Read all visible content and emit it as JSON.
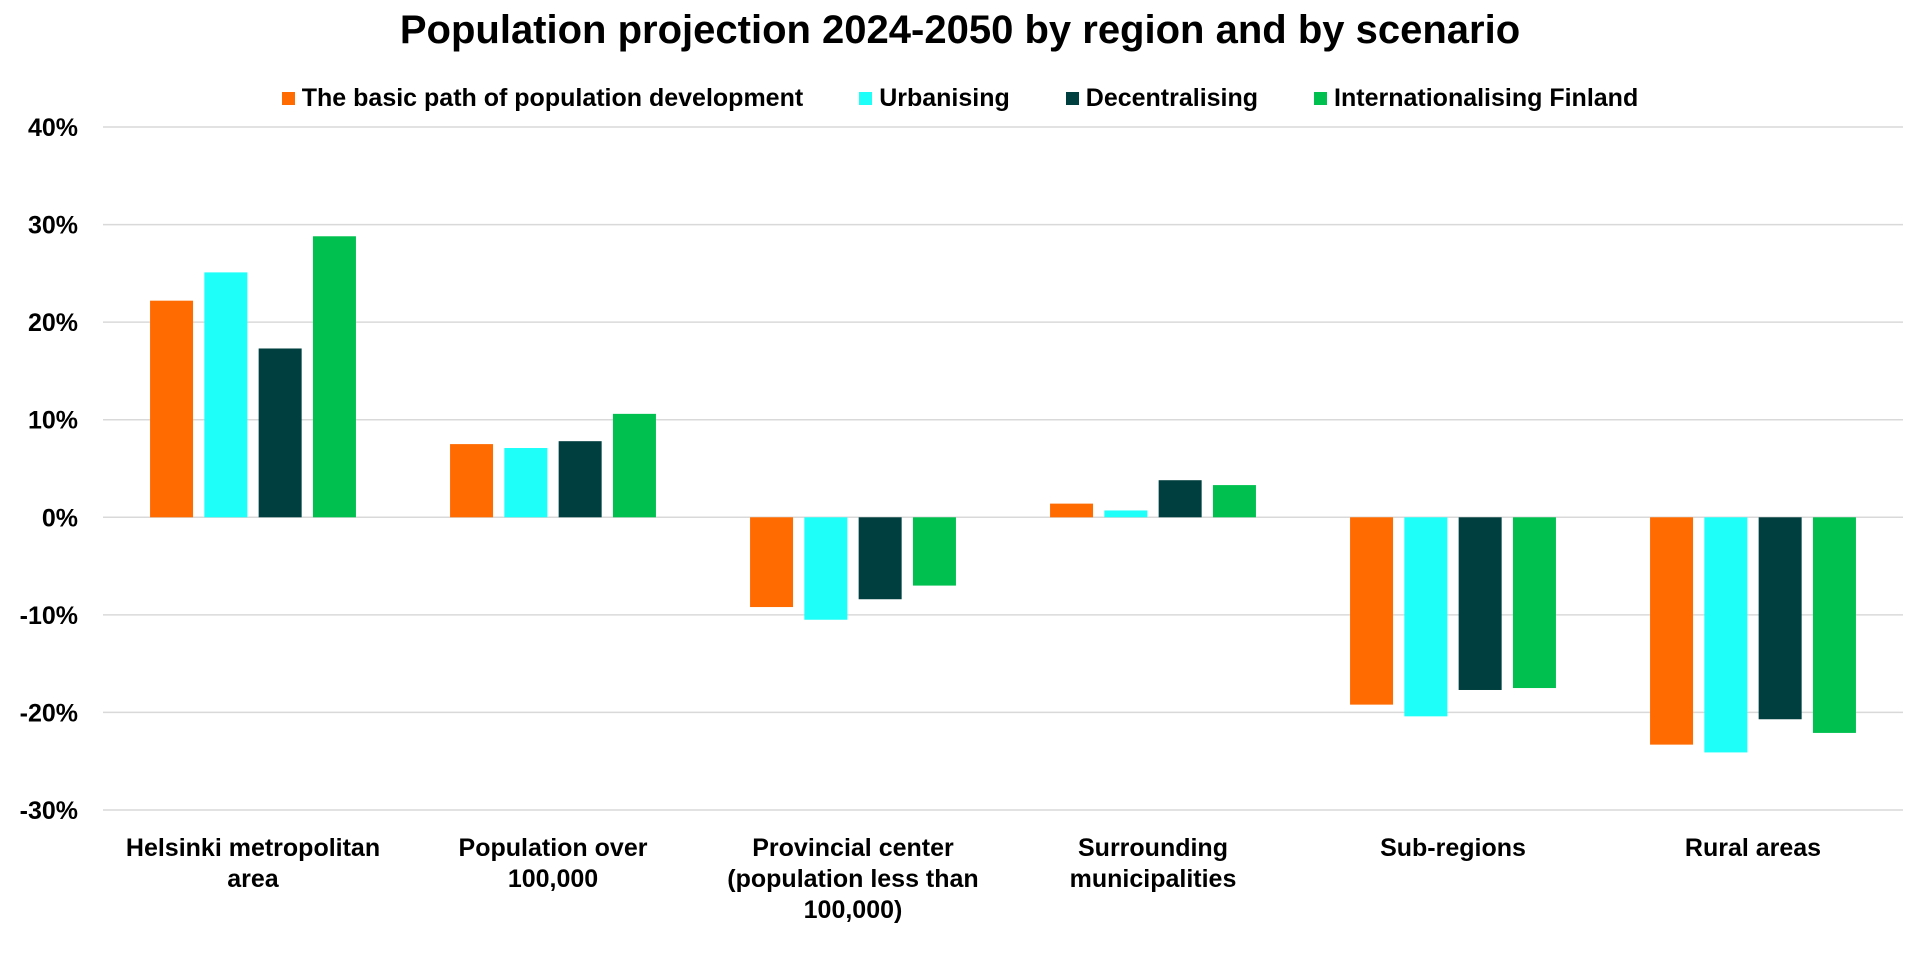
{
  "chart_data": {
    "type": "bar",
    "title": "Population projection 2024-2050 by region and by scenario",
    "xlabel": "",
    "ylabel": "",
    "ylim": [
      -30,
      40
    ],
    "yticks": [
      "-30%",
      "-20%",
      "-10%",
      "0%",
      "10%",
      "20%",
      "30%",
      "40%"
    ],
    "ytick_values": [
      -30,
      -20,
      -10,
      0,
      10,
      20,
      30,
      40
    ],
    "grid": true,
    "legend_position": "top",
    "categories": [
      "Helsinki metropolitan area",
      "Population over 100,000",
      "Provincial center (population less than 100,000)",
      "Surrounding municipalities",
      "Sub-regions",
      "Rural areas"
    ],
    "category_lines": [
      [
        "Helsinki metropolitan",
        "area"
      ],
      [
        "Population over",
        "100,000"
      ],
      [
        "Provincial center",
        "(population less than",
        "100,000)"
      ],
      [
        "Surrounding",
        "municipalities"
      ],
      [
        "Sub-regions"
      ],
      [
        "Rural areas"
      ]
    ],
    "series": [
      {
        "name": "The basic path of population development",
        "color": "#FF6B00",
        "values": [
          22.2,
          7.5,
          -9.2,
          1.4,
          -19.2,
          -23.3
        ]
      },
      {
        "name": "Urbanising",
        "color": "#1FFFF9",
        "values": [
          25.1,
          7.1,
          -10.5,
          0.7,
          -20.4,
          -24.1
        ]
      },
      {
        "name": "Decentralising",
        "color": "#003F3F",
        "values": [
          17.3,
          7.8,
          -8.4,
          3.8,
          -17.7,
          -20.7
        ]
      },
      {
        "name": "Internationalising Finland",
        "color": "#00C050",
        "values": [
          28.8,
          10.6,
          -7.0,
          3.3,
          -17.5,
          -22.1
        ]
      }
    ],
    "unit": "%"
  }
}
